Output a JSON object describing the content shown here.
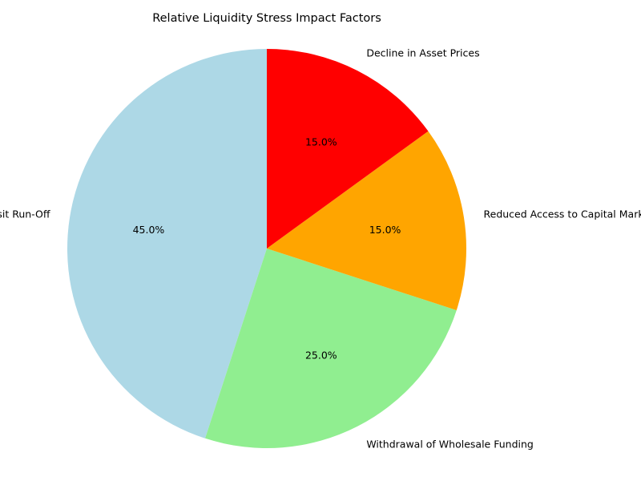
{
  "chart_data": {
    "type": "pie",
    "title": "Relative Liquidity Stress Impact Factors",
    "start_angle_deg": 90,
    "direction": "counterclockwise",
    "slices": [
      {
        "label": "Deposit Run-Off",
        "value": 45,
        "pct_label": "45.0%",
        "color": "#add8e6"
      },
      {
        "label": "Withdrawal of Wholesale Funding",
        "value": 25,
        "pct_label": "25.0%",
        "color": "#90ee90"
      },
      {
        "label": "Reduced Access to Capital Markets",
        "value": 15,
        "pct_label": "15.0%",
        "color": "#ffa500"
      },
      {
        "label": "Decline in Asset Prices",
        "value": 15,
        "pct_label": "15.0%",
        "color": "#ff0000"
      }
    ]
  }
}
